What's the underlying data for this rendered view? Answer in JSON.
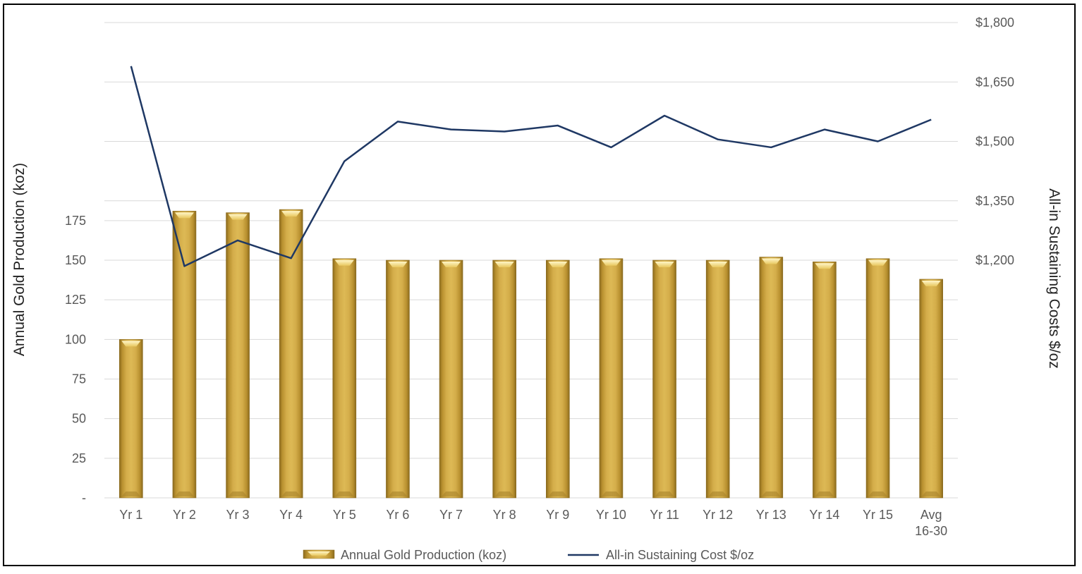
{
  "chart_data": {
    "type": "bar",
    "categories": [
      "Yr 1",
      "Yr 2",
      "Yr 3",
      "Yr 4",
      "Yr 5",
      "Yr 6",
      "Yr 7",
      "Yr 8",
      "Yr 9",
      "Yr 10",
      "Yr 11",
      "Yr 12",
      "Yr 13",
      "Yr 14",
      "Yr 15",
      "Avg\n16-30"
    ],
    "series": [
      {
        "name": "Annual Gold Production (koz)",
        "type": "bar",
        "axis": "left",
        "values": [
          100,
          181,
          180,
          182,
          151,
          150,
          150,
          150,
          150,
          151,
          150,
          150,
          152,
          149,
          151,
          138
        ]
      },
      {
        "name": "All-in Sustaining Cost $/oz",
        "type": "line",
        "axis": "right",
        "values": [
          1690,
          1185,
          1250,
          1205,
          1450,
          1550,
          1530,
          1525,
          1540,
          1485,
          1565,
          1505,
          1485,
          1530,
          1500,
          1555
        ]
      }
    ],
    "ylabel": "Annual Gold Production (koz)",
    "y2label": "All-in Sustaining Costs $/oz",
    "ylim": [
      0,
      300
    ],
    "y_ticks": [
      0,
      25,
      50,
      75,
      100,
      125,
      150,
      175
    ],
    "y_tick_labels": [
      "-",
      "25",
      "50",
      "75",
      "100",
      "125",
      "150",
      "175"
    ],
    "y2lim": [
      600,
      1800
    ],
    "y2_ticks": [
      1200,
      1350,
      1500,
      1650,
      1800
    ],
    "y2_tick_labels": [
      "$1,200",
      "$1,350",
      "$1,500",
      "$1,650",
      "$1,800"
    ],
    "grid": true,
    "legend": "bottom",
    "colors": {
      "bar": "#c9a13c",
      "bar_highlight": "#f6e9a6",
      "bar_shadow": "#8a6a1e",
      "line": "#1f3864",
      "grid": "#d9d9d9"
    }
  }
}
